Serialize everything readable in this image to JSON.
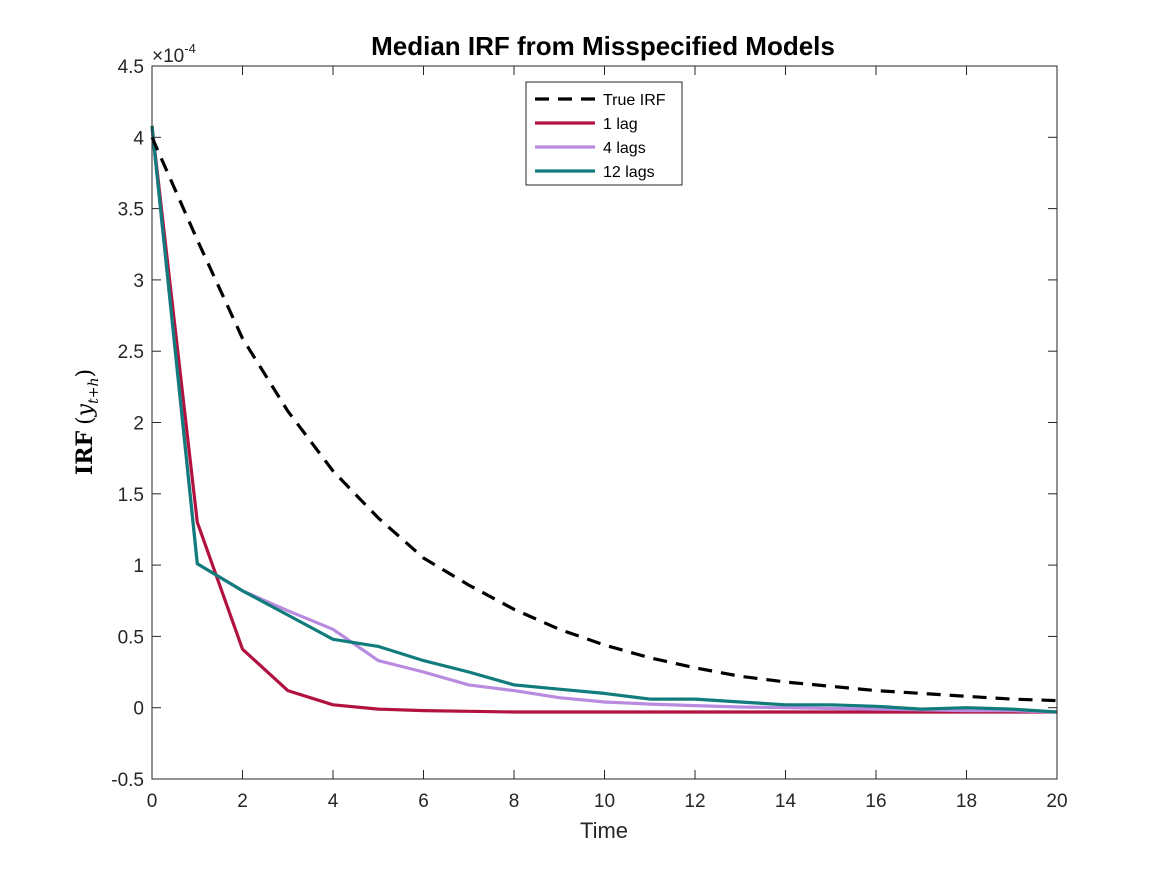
{
  "chart_data": {
    "type": "line",
    "title": "Median IRF from Misspecified Models",
    "xlabel": "Time",
    "ylabel": {
      "main": "IRF",
      "open": "(",
      "var": "y",
      "sub": "t+h",
      "close": ")"
    },
    "y_scale_exponent": {
      "base": "×10",
      "power": "-4"
    },
    "xlim": [
      0,
      20
    ],
    "ylim": [
      -0.5,
      4.5
    ],
    "xticks": [
      "0",
      "2",
      "4",
      "6",
      "8",
      "10",
      "12",
      "14",
      "16",
      "18",
      "20"
    ],
    "yticks": [
      "-0.5",
      "0",
      "0.5",
      "1",
      "1.5",
      "2",
      "2.5",
      "3",
      "3.5",
      "4",
      "4.5"
    ],
    "xtick_values": [
      0,
      2,
      4,
      6,
      8,
      10,
      12,
      14,
      16,
      18,
      20
    ],
    "ytick_values": [
      -0.5,
      0,
      0.5,
      1,
      1.5,
      2,
      2.5,
      3,
      3.5,
      4,
      4.5
    ],
    "grid": false,
    "legend_position": "top-center",
    "x": [
      0,
      1,
      2,
      3,
      4,
      5,
      6,
      7,
      8,
      9,
      10,
      11,
      12,
      13,
      14,
      15,
      16,
      17,
      18,
      19,
      20
    ],
    "series": [
      {
        "name": "True IRF",
        "color": "#000000",
        "dash": true,
        "values": [
          4.0,
          3.28,
          2.59,
          2.08,
          1.66,
          1.33,
          1.05,
          0.86,
          0.69,
          0.55,
          0.44,
          0.35,
          0.28,
          0.22,
          0.18,
          0.15,
          0.12,
          0.1,
          0.08,
          0.06,
          0.05
        ]
      },
      {
        "name": "1 lag",
        "color": "#b2123f",
        "dash": false,
        "values": [
          4.08,
          1.3,
          0.41,
          0.12,
          0.02,
          -0.01,
          -0.02,
          -0.025,
          -0.03,
          -0.03,
          -0.03,
          -0.03,
          -0.03,
          -0.03,
          -0.03,
          -0.03,
          -0.03,
          -0.03,
          -0.03,
          -0.03,
          -0.03
        ]
      },
      {
        "name": "4 lags",
        "color": "#b88be0",
        "dash": false,
        "values": [
          4.07,
          1.01,
          0.82,
          0.68,
          0.55,
          0.33,
          0.25,
          0.16,
          0.12,
          0.07,
          0.04,
          0.025,
          0.015,
          0.005,
          0.0,
          -0.005,
          -0.01,
          -0.015,
          -0.02,
          -0.02,
          -0.03
        ]
      },
      {
        "name": "12 lags",
        "color": "#117c7b",
        "dash": false,
        "values": [
          4.08,
          1.01,
          0.82,
          0.65,
          0.48,
          0.43,
          0.33,
          0.25,
          0.16,
          0.13,
          0.1,
          0.06,
          0.06,
          0.04,
          0.02,
          0.02,
          0.01,
          -0.01,
          0.0,
          -0.01,
          -0.03
        ]
      }
    ]
  }
}
